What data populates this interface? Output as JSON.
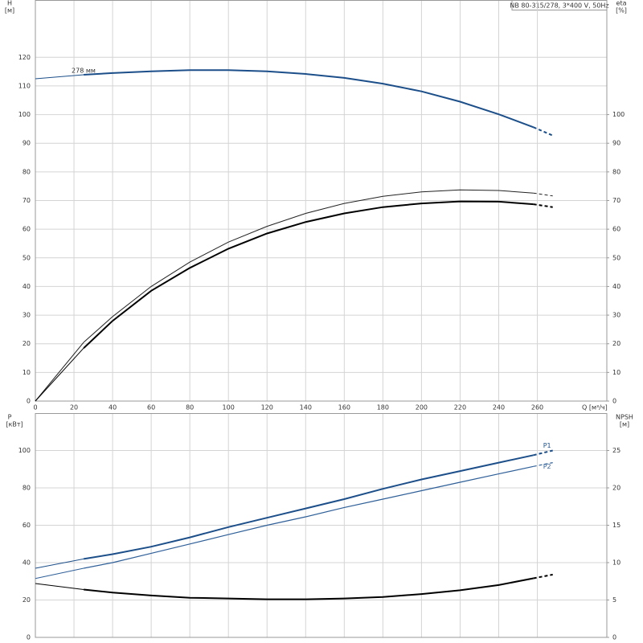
{
  "chart_data": [
    {
      "type": "line",
      "title": "NB 80-315/278, 3*400 V, 50Hz",
      "xlabel": "Q [м³/ч]",
      "ylabel": "H",
      "yunit": "[м]",
      "y2label": "eta",
      "y2unit": "[%]",
      "x": [
        0,
        25,
        40,
        60,
        80,
        100,
        120,
        140,
        160,
        180,
        200,
        220,
        240,
        258,
        268
      ],
      "xlim": [
        0,
        296
      ],
      "xticks": [
        0,
        20,
        40,
        60,
        80,
        100,
        120,
        140,
        160,
        180,
        200,
        220,
        240,
        260
      ],
      "ylim": [
        0,
        140
      ],
      "yticks": [
        0,
        10,
        20,
        30,
        40,
        50,
        60,
        70,
        80,
        90,
        100,
        110,
        120
      ],
      "y2lim": [
        0,
        140
      ],
      "y2ticks": [
        0,
        10,
        20,
        30,
        40,
        50,
        60,
        70,
        80,
        90,
        100
      ],
      "grid": true,
      "series": [
        {
          "name": "278 мм",
          "color": "#1c4f8a",
          "line_width": 2,
          "values": [
            112.5,
            113.9,
            114.5,
            115.1,
            115.5,
            115.5,
            115.1,
            114.2,
            112.8,
            110.8,
            108.1,
            104.5,
            100.1,
            95.6,
            92.7
          ]
        },
        {
          "color": "#222222",
          "line_width": 1,
          "axis": "y2",
          "values": [
            0,
            20.5,
            29.5,
            40,
            48.5,
            55.5,
            61,
            65.5,
            69,
            71.5,
            73,
            73.7,
            73.5,
            72.6,
            71.6
          ]
        },
        {
          "color": "#000000",
          "line_width": 2,
          "axis": "y2",
          "values": [
            0,
            18.5,
            28,
            38.5,
            46.5,
            53.2,
            58.5,
            62.5,
            65.5,
            67.7,
            69,
            69.7,
            69.6,
            68.7,
            67.7
          ]
        }
      ]
    },
    {
      "type": "line",
      "ylabel": "P",
      "yunit": "[кВт]",
      "y2label": "NPSH",
      "y2unit": "[м]",
      "x": [
        0,
        25,
        40,
        60,
        80,
        100,
        120,
        140,
        160,
        180,
        200,
        220,
        240,
        258,
        268
      ],
      "ylim": [
        0,
        120
      ],
      "yticks": [
        0,
        20,
        40,
        60,
        80,
        100
      ],
      "y2lim": [
        0,
        30
      ],
      "y2ticks": [
        0,
        5,
        10,
        15,
        20,
        25
      ],
      "grid": true,
      "series": [
        {
          "name": "P1",
          "color": "#1c4f8a",
          "line_width": 2,
          "values": [
            37,
            42,
            44.5,
            48.5,
            53.5,
            59,
            64,
            69,
            74,
            79.5,
            84.5,
            89,
            93.5,
            97.5,
            100
          ]
        },
        {
          "name": "P2",
          "color": "#2e5f99",
          "line_width": 1.2,
          "values": [
            31.5,
            37,
            40,
            45,
            50,
            55,
            60,
            64.5,
            69.5,
            74,
            78.5,
            83,
            87.5,
            91.5,
            93.5
          ]
        },
        {
          "color": "#000000",
          "line_width": 2,
          "axis": "y2",
          "values": [
            7.2,
            6.4,
            6.0,
            5.6,
            5.3,
            5.2,
            5.1,
            5.1,
            5.2,
            5.4,
            5.8,
            6.3,
            7.0,
            7.9,
            8.4
          ]
        }
      ]
    }
  ]
}
